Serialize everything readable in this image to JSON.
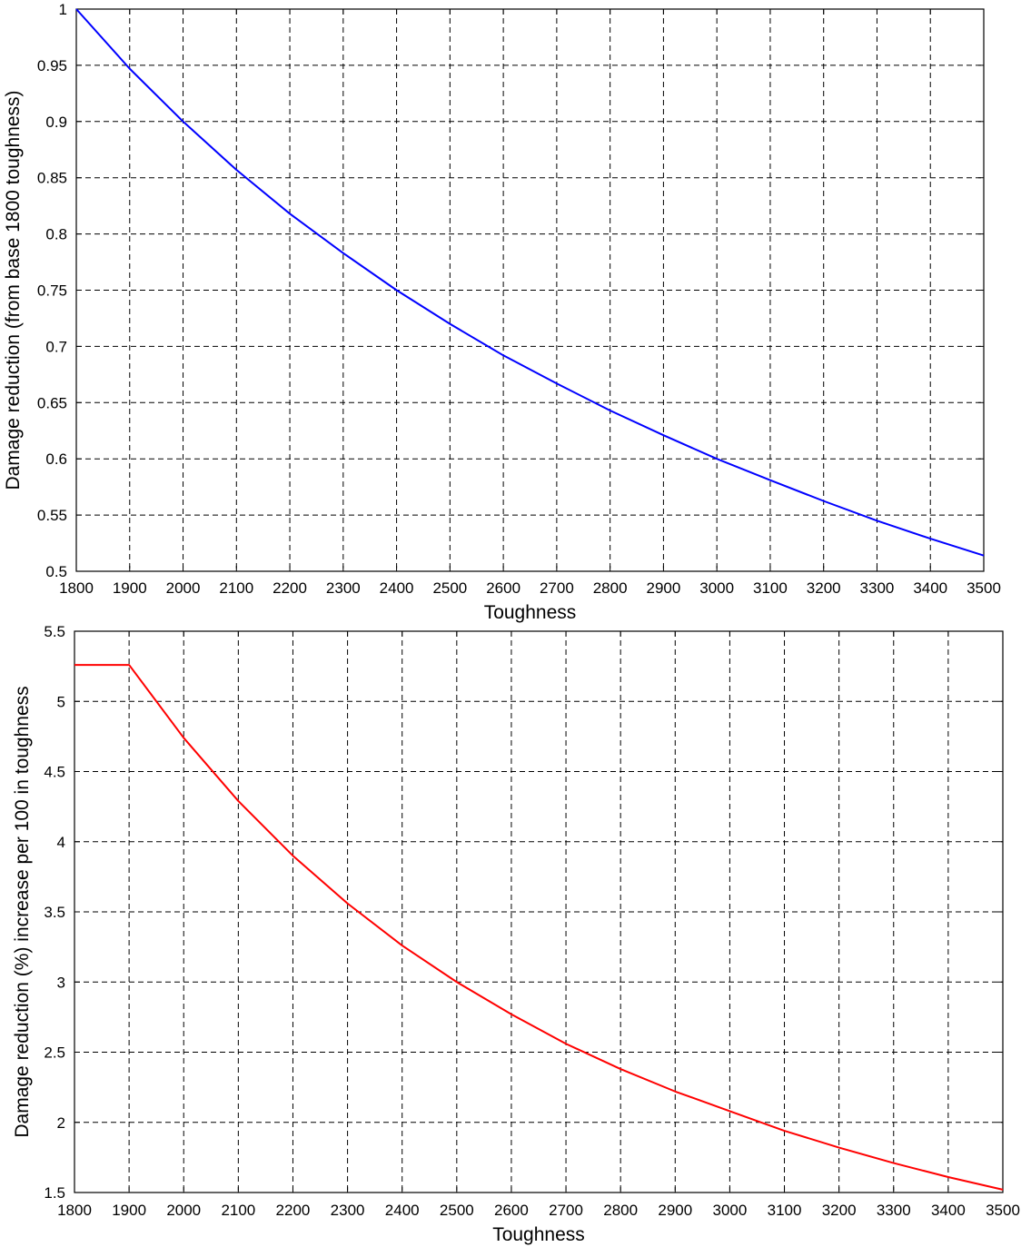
{
  "chart_data": [
    {
      "type": "line",
      "title": "",
      "xlabel": "Toughness",
      "ylabel": "Damage reduction (from base 1800 toughness)",
      "xlim": [
        1800,
        3500
      ],
      "ylim": [
        0.5,
        1
      ],
      "xticks": [
        "1800",
        "1900",
        "2000",
        "2100",
        "2200",
        "2300",
        "2400",
        "2500",
        "2600",
        "2700",
        "2800",
        "2900",
        "3000",
        "3100",
        "3200",
        "3300",
        "3400",
        "3500"
      ],
      "yticks": [
        "0.5",
        "0.55",
        "0.6",
        "0.65",
        "0.7",
        "0.75",
        "0.8",
        "0.85",
        "0.9",
        "0.95",
        "1"
      ],
      "grid": true,
      "series": [
        {
          "color": "#0000ff",
          "x": [
            1800,
            1900,
            2000,
            2100,
            2200,
            2300,
            2400,
            2500,
            2600,
            2700,
            2800,
            2900,
            3000,
            3100,
            3200,
            3300,
            3400,
            3500
          ],
          "y": [
            1.0,
            0.947,
            0.9,
            0.857,
            0.818,
            0.783,
            0.75,
            0.72,
            0.692,
            0.667,
            0.643,
            0.621,
            0.6,
            0.581,
            0.5625,
            0.545,
            0.529,
            0.514
          ]
        }
      ]
    },
    {
      "type": "line",
      "title": "",
      "xlabel": "Toughness",
      "ylabel": "Damage reduction (%) increase per 100 in toughness",
      "xlim": [
        1800,
        3500
      ],
      "ylim": [
        1.5,
        5.5
      ],
      "xticks": [
        "1800",
        "1900",
        "2000",
        "2100",
        "2200",
        "2300",
        "2400",
        "2500",
        "2600",
        "2700",
        "2800",
        "2900",
        "3000",
        "3100",
        "3200",
        "3300",
        "3400",
        "3500"
      ],
      "yticks": [
        "1.5",
        "2",
        "2.5",
        "3",
        "3.5",
        "4",
        "4.5",
        "5",
        "5.5"
      ],
      "grid": true,
      "series": [
        {
          "color": "#ff0000",
          "x": [
            1800,
            1900,
            2000,
            2100,
            2200,
            2300,
            2400,
            2500,
            2600,
            2700,
            2800,
            2900,
            3000,
            3100,
            3200,
            3300,
            3400,
            3500
          ],
          "y": [
            5.26,
            5.26,
            4.74,
            4.29,
            3.9,
            3.56,
            3.26,
            3.0,
            2.77,
            2.56,
            2.38,
            2.22,
            2.08,
            1.94,
            1.82,
            1.71,
            1.61,
            1.52
          ]
        }
      ]
    }
  ]
}
